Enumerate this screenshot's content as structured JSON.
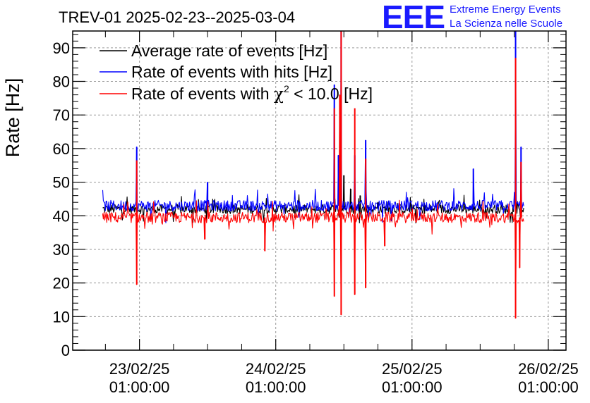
{
  "chart_data": {
    "type": "line",
    "title": "TREV-01 2025-02-23--2025-03-04",
    "ylabel": "Rate [Hz]",
    "xlabel": "",
    "ylim": [
      0,
      95
    ],
    "yticks": [
      0,
      10,
      20,
      30,
      40,
      50,
      60,
      70,
      80,
      90
    ],
    "xlim_days": [
      -0.49,
      3.13
    ],
    "x_unit": "days since 23/02/25 01:00:00",
    "x_tick_labels": [
      {
        "date": "23/02/25",
        "time": "01:00:00"
      },
      {
        "date": "24/02/25",
        "time": "01:00:00"
      },
      {
        "date": "25/02/25",
        "time": "01:00:00"
      },
      {
        "date": "26/02/25",
        "time": "01:00:00"
      }
    ],
    "grid": true,
    "legend_position": "top-left",
    "data_range_days": [
      -0.27,
      2.82
    ],
    "series": [
      {
        "name": "Average rate of events [Hz]",
        "legend_label": "Average rate of events [Hz]",
        "color": "#000000",
        "baseline": 42.0,
        "noise": 1.4,
        "spikes": [
          [
            1.5,
            52
          ],
          [
            1.55,
            48
          ],
          [
            1.62,
            46
          ],
          [
            1.75,
            44
          ]
        ]
      },
      {
        "name": "Rate of events with hits [Hz]",
        "legend_label": "Rate of events with hits [Hz]",
        "color": "#0000ff",
        "baseline": 43.0,
        "noise": 1.6,
        "spikes": [
          [
            -0.02,
            60.5
          ],
          [
            0.5,
            50
          ],
          [
            1.43,
            79
          ],
          [
            1.46,
            58
          ],
          [
            1.48,
            95
          ],
          [
            1.58,
            58
          ],
          [
            1.66,
            62.5
          ],
          [
            2.45,
            54
          ],
          [
            2.76,
            95
          ],
          [
            2.8,
            60.5
          ]
        ]
      },
      {
        "name": "Rate of events with χ² < 10.0 [Hz]",
        "legend_label_prefix": "Rate of events with ",
        "legend_label_symbol": "χ",
        "legend_label_sup": "2",
        "legend_label_suffix": " < 10.0 [Hz]",
        "color": "#ff0000",
        "baseline": 39.5,
        "noise": 1.6,
        "spikes": [
          [
            -0.02,
            56.5
          ],
          [
            1.43,
            72
          ],
          [
            1.47,
            76
          ],
          [
            1.48,
            95
          ],
          [
            1.58,
            72
          ],
          [
            1.66,
            57
          ],
          [
            2.76,
            87
          ],
          [
            2.8,
            56
          ]
        ],
        "dips": [
          [
            -0.02,
            19.5
          ],
          [
            0.48,
            33
          ],
          [
            0.92,
            29.5
          ],
          [
            1.43,
            16
          ],
          [
            1.48,
            10.5
          ],
          [
            1.58,
            16.5
          ],
          [
            1.66,
            18.5
          ],
          [
            1.8,
            31
          ],
          [
            2.76,
            9.5
          ],
          [
            2.79,
            24.5
          ]
        ]
      }
    ]
  },
  "logo": {
    "mark": "EEE",
    "line1": "Extreme Energy Events",
    "line2": "La Scienza nelle Scuole"
  },
  "colors": {
    "average": "#000000",
    "hits": "#0000ff",
    "chi2": "#ff0000",
    "logo": "#1a1aff",
    "grid": "#9a9a9a"
  }
}
